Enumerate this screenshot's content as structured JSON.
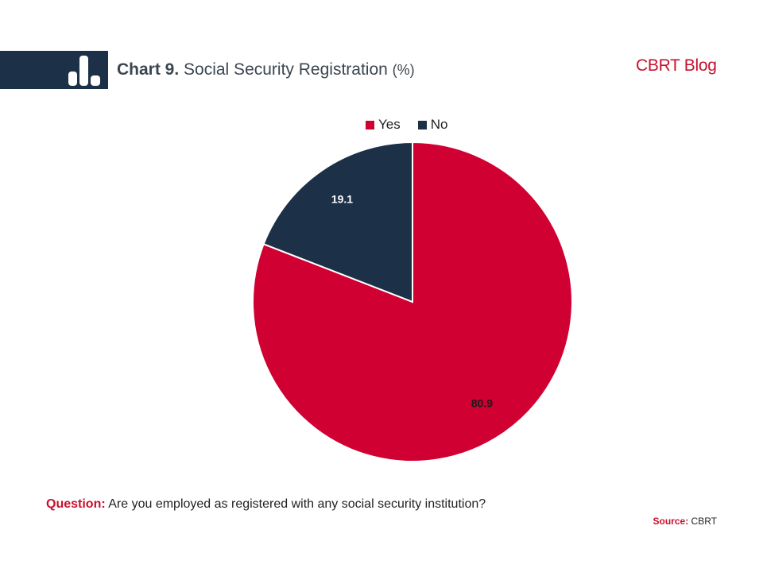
{
  "header": {
    "chart_number": "Chart 9.",
    "title": "Social Security Registration",
    "unit": "(%)",
    "brand": "CBRT Blog",
    "icon": "bar-chart-icon"
  },
  "colors": {
    "yes": "#d00032",
    "no": "#1c3047",
    "brand_red": "#c8102e",
    "navy": "#1c3047"
  },
  "chart_data": {
    "type": "pie",
    "title": "Social Security Registration (%)",
    "labels": [
      "Yes",
      "No"
    ],
    "values": [
      80.9,
      19.1
    ],
    "legend_position": "top"
  },
  "footer": {
    "question_label": "Question:",
    "question_text": "Are you employed as registered with any social security institution?",
    "source_label": "Source:",
    "source_text": "CBRT"
  }
}
